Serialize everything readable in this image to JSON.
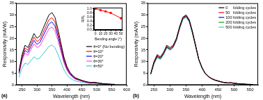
{
  "chart_data": [
    {
      "type": "line",
      "panel_label": "(a)",
      "x_label": "Wavelength (nm)",
      "y_label": "Responsivity (mA/W)",
      "xlim": [
        230,
        600
      ],
      "xticks": [
        250,
        300,
        350,
        400,
        450,
        500,
        550,
        600
      ],
      "ylim": [
        0,
        35
      ],
      "yticks": [
        0,
        5,
        10,
        15,
        20,
        25,
        30,
        35
      ],
      "legend": "right",
      "x": [
        240,
        250,
        260,
        270,
        280,
        290,
        300,
        310,
        320,
        330,
        340,
        350,
        360,
        370,
        380,
        390,
        400,
        410,
        420,
        430,
        440,
        450,
        460,
        470,
        480,
        490,
        500,
        510,
        520,
        530,
        540,
        550,
        560
      ],
      "series": [
        {
          "name": "θ=0° (No bending)",
          "color": "#000000",
          "values": [
            6,
            13,
            17,
            16,
            19,
            22,
            20,
            21,
            24,
            27,
            30,
            31,
            29,
            24,
            18,
            12,
            8,
            5.5,
            4,
            3,
            2.5,
            2,
            1.6,
            1.3,
            1.1,
            1.2,
            1.0,
            0.8,
            0.6,
            0.5,
            0.4,
            0.3,
            0.3
          ]
        },
        {
          "name": "θ=10°",
          "color": "#ff0000",
          "values": [
            5.6,
            12,
            15.8,
            14.9,
            17.7,
            20.5,
            18.6,
            19.5,
            22.3,
            25.1,
            27.9,
            28.8,
            27,
            22.3,
            16.7,
            11.2,
            7.4,
            5.1,
            3.7,
            2.8,
            2.3,
            1.9,
            1.5,
            1.2,
            1,
            1.1,
            0.9,
            0.7,
            0.6,
            0.5,
            0.4,
            0.3,
            0.3
          ]
        },
        {
          "name": "θ=20°",
          "color": "#0000ff",
          "values": [
            5.2,
            11.3,
            14.8,
            13.9,
            16.5,
            19.1,
            17.4,
            18.3,
            20.9,
            23.5,
            26.1,
            27,
            25.2,
            20.9,
            15.7,
            10.4,
            7,
            4.8,
            3.5,
            2.6,
            2.2,
            1.7,
            1.4,
            1.1,
            1,
            1,
            0.9,
            0.7,
            0.5,
            0.4,
            0.3,
            0.3,
            0.2
          ]
        },
        {
          "name": "θ=30°",
          "color": "#ff44cc",
          "values": [
            4.8,
            10.4,
            13.6,
            12.8,
            15.2,
            17.6,
            16,
            16.8,
            19.2,
            21.6,
            24,
            24.8,
            23.2,
            19.2,
            14.4,
            9.6,
            6.4,
            4.4,
            3.2,
            2.4,
            2,
            1.6,
            1.3,
            1,
            0.9,
            1,
            0.8,
            0.6,
            0.5,
            0.4,
            0.3,
            0.2,
            0.2
          ]
        },
        {
          "name": "θ=50°",
          "color": "#33cccc",
          "values": [
            3.3,
            7.2,
            9.4,
            8.8,
            10.5,
            12.1,
            11,
            11.6,
            13.2,
            14.9,
            16.5,
            17.1,
            16,
            13.2,
            9.9,
            6.6,
            4.4,
            3,
            2.2,
            1.7,
            1.4,
            1.1,
            0.9,
            0.7,
            0.6,
            0.7,
            0.5,
            0.4,
            0.3,
            0.2,
            0.2,
            0.2,
            0.2
          ]
        }
      ]
    },
    {
      "type": "line",
      "x_label": "Bending angle (°)",
      "y_label": "R/R₀",
      "xlim": [
        -3,
        53
      ],
      "xticks": [
        0,
        10,
        20,
        30,
        40,
        50
      ],
      "ylim": [
        0,
        1.05
      ],
      "yticks": [
        {
          "value": 0,
          "label": "0.0"
        },
        {
          "value": 0.2,
          "label": "0.2"
        },
        {
          "value": 0.4,
          "label": "0.4"
        },
        {
          "value": 0.6,
          "label": "0.6"
        },
        {
          "value": 0.8,
          "label": "0.8"
        },
        {
          "value": 1,
          "label": "1.0"
        }
      ],
      "x": [
        0,
        10,
        20,
        30,
        50
      ],
      "series": [
        {
          "color": "#ff0000",
          "marker": "square",
          "values": [
            1.0,
            0.93,
            0.87,
            0.8,
            0.55
          ]
        }
      ]
    },
    {
      "type": "line",
      "panel_label": "(b)",
      "x_label": "Wavelength (nm)",
      "y_label": "Responsivity (mA/W)",
      "xlim": [
        230,
        575
      ],
      "xticks": [
        250,
        300,
        350,
        400,
        450,
        500,
        550
      ],
      "ylim": [
        0,
        35
      ],
      "yticks": [
        0,
        5,
        10,
        15,
        20,
        25,
        30,
        35
      ],
      "legend": "top right",
      "x": [
        240,
        250,
        260,
        270,
        280,
        290,
        300,
        310,
        320,
        330,
        340,
        350,
        360,
        370,
        380,
        390,
        400,
        410,
        420,
        430,
        440,
        450,
        460,
        470,
        480,
        490,
        500,
        510,
        520,
        530,
        540,
        550,
        560
      ],
      "series": [
        {
          "name": "0     folding cycles",
          "color": "#000000",
          "values": [
            5,
            10,
            13,
            12,
            14,
            17,
            16,
            17,
            20,
            25,
            29,
            30,
            28,
            23,
            17,
            11,
            7.5,
            5,
            3.7,
            2.8,
            2.2,
            1.8,
            1.4,
            1.1,
            0.9,
            1,
            0.8,
            0.6,
            0.5,
            0.4,
            0.3,
            0.3,
            0.2
          ]
        },
        {
          "name": "50   folding cycles",
          "color": "#ff0000",
          "values": [
            4.8,
            9.6,
            12.5,
            11.6,
            13.6,
            16.5,
            15.5,
            16.6,
            19.6,
            24.6,
            28.7,
            29.7,
            27.7,
            22.7,
            16.8,
            10.9,
            7.4,
            4.9,
            3.6,
            2.7,
            2.1,
            1.7,
            1.3,
            1.1,
            0.9,
            1,
            0.8,
            0.6,
            0.5,
            0.4,
            0.3,
            0.3,
            0.2
          ]
        },
        {
          "name": "100 folding cycles",
          "color": "#0000ff",
          "values": [
            4.7,
            9.4,
            12.3,
            11.4,
            13.4,
            16.3,
            15.3,
            16.4,
            19.4,
            24.4,
            28.5,
            29.5,
            27.5,
            22.5,
            16.6,
            10.8,
            7.3,
            4.9,
            3.6,
            2.7,
            2.1,
            1.7,
            1.3,
            1,
            0.9,
            0.9,
            0.7,
            0.6,
            0.5,
            0.4,
            0.3,
            0.2,
            0.2
          ]
        },
        {
          "name": "200 folding cycles",
          "color": "#00aa00",
          "values": [
            4.6,
            9.2,
            12,
            11.2,
            13.2,
            16.1,
            15.1,
            16.2,
            19.2,
            24.2,
            28.2,
            29.2,
            27.3,
            22.3,
            16.5,
            10.7,
            7.2,
            4.8,
            3.5,
            2.6,
            2,
            1.6,
            1.3,
            1,
            0.9,
            0.9,
            0.7,
            0.6,
            0.5,
            0.4,
            0.3,
            0.2,
            0.2
          ]
        },
        {
          "name": "500 folding cycles",
          "color": "#33cccc",
          "values": [
            4.4,
            9,
            11.7,
            11,
            13,
            15.9,
            14.9,
            16,
            19,
            24,
            28,
            29,
            27,
            22,
            16.3,
            10.6,
            7.1,
            4.7,
            3.5,
            2.6,
            2,
            1.6,
            1.2,
            1,
            0.8,
            0.9,
            0.7,
            0.5,
            0.4,
            0.3,
            0.3,
            0.2,
            0.2
          ]
        }
      ]
    }
  ]
}
